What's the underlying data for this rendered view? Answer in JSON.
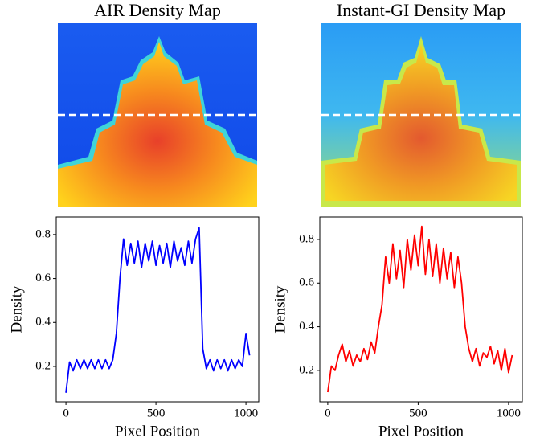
{
  "images": [
    {
      "title": "AIR Density Map"
    },
    {
      "title": "Instant-GI Density Map"
    }
  ],
  "chart_data": [
    {
      "type": "line",
      "xlabel": "Pixel Position",
      "ylabel": "Density",
      "color": "#0000ff",
      "x": [
        0,
        20,
        40,
        60,
        80,
        100,
        120,
        140,
        160,
        180,
        200,
        220,
        240,
        260,
        280,
        300,
        320,
        340,
        360,
        380,
        400,
        420,
        440,
        460,
        480,
        500,
        520,
        540,
        560,
        580,
        600,
        620,
        640,
        660,
        680,
        700,
        720,
        740,
        760,
        780,
        800,
        820,
        840,
        860,
        880,
        900,
        920,
        940,
        960,
        980,
        1000,
        1020
      ],
      "values": [
        0.08,
        0.22,
        0.18,
        0.23,
        0.19,
        0.23,
        0.19,
        0.23,
        0.19,
        0.23,
        0.19,
        0.23,
        0.19,
        0.23,
        0.35,
        0.6,
        0.78,
        0.66,
        0.76,
        0.67,
        0.77,
        0.65,
        0.76,
        0.68,
        0.77,
        0.66,
        0.75,
        0.67,
        0.76,
        0.65,
        0.77,
        0.68,
        0.74,
        0.66,
        0.77,
        0.67,
        0.78,
        0.83,
        0.28,
        0.19,
        0.23,
        0.18,
        0.23,
        0.19,
        0.23,
        0.18,
        0.23,
        0.19,
        0.23,
        0.2,
        0.35,
        0.25
      ],
      "xlim": [
        -54,
        1071
      ],
      "ylim": [
        0.039,
        0.88
      ],
      "xticks": [
        0,
        500,
        1000
      ],
      "yticks": [
        0.2,
        0.4,
        0.6,
        0.8
      ]
    },
    {
      "type": "line",
      "xlabel": "Pixel Position",
      "ylabel": "Density",
      "color": "#ff0000",
      "x": [
        0,
        20,
        40,
        60,
        80,
        100,
        120,
        140,
        160,
        180,
        200,
        220,
        240,
        260,
        280,
        300,
        320,
        340,
        360,
        380,
        400,
        420,
        440,
        460,
        480,
        500,
        520,
        540,
        560,
        580,
        600,
        620,
        640,
        660,
        680,
        700,
        720,
        740,
        760,
        780,
        800,
        820,
        840,
        860,
        880,
        900,
        920,
        940,
        960,
        980,
        1000,
        1020
      ],
      "values": [
        0.1,
        0.22,
        0.2,
        0.27,
        0.32,
        0.24,
        0.29,
        0.22,
        0.27,
        0.24,
        0.3,
        0.25,
        0.33,
        0.28,
        0.4,
        0.5,
        0.72,
        0.6,
        0.78,
        0.62,
        0.75,
        0.58,
        0.8,
        0.66,
        0.82,
        0.68,
        0.86,
        0.64,
        0.8,
        0.63,
        0.78,
        0.6,
        0.76,
        0.62,
        0.74,
        0.58,
        0.72,
        0.6,
        0.4,
        0.3,
        0.24,
        0.3,
        0.22,
        0.28,
        0.26,
        0.31,
        0.23,
        0.29,
        0.2,
        0.3,
        0.19,
        0.27
      ],
      "xlim": [
        -44,
        1076
      ],
      "ylim": [
        0.056,
        0.903
      ],
      "xticks": [
        0,
        500,
        1000
      ],
      "yticks": [
        0.2,
        0.4,
        0.6,
        0.8
      ]
    }
  ]
}
